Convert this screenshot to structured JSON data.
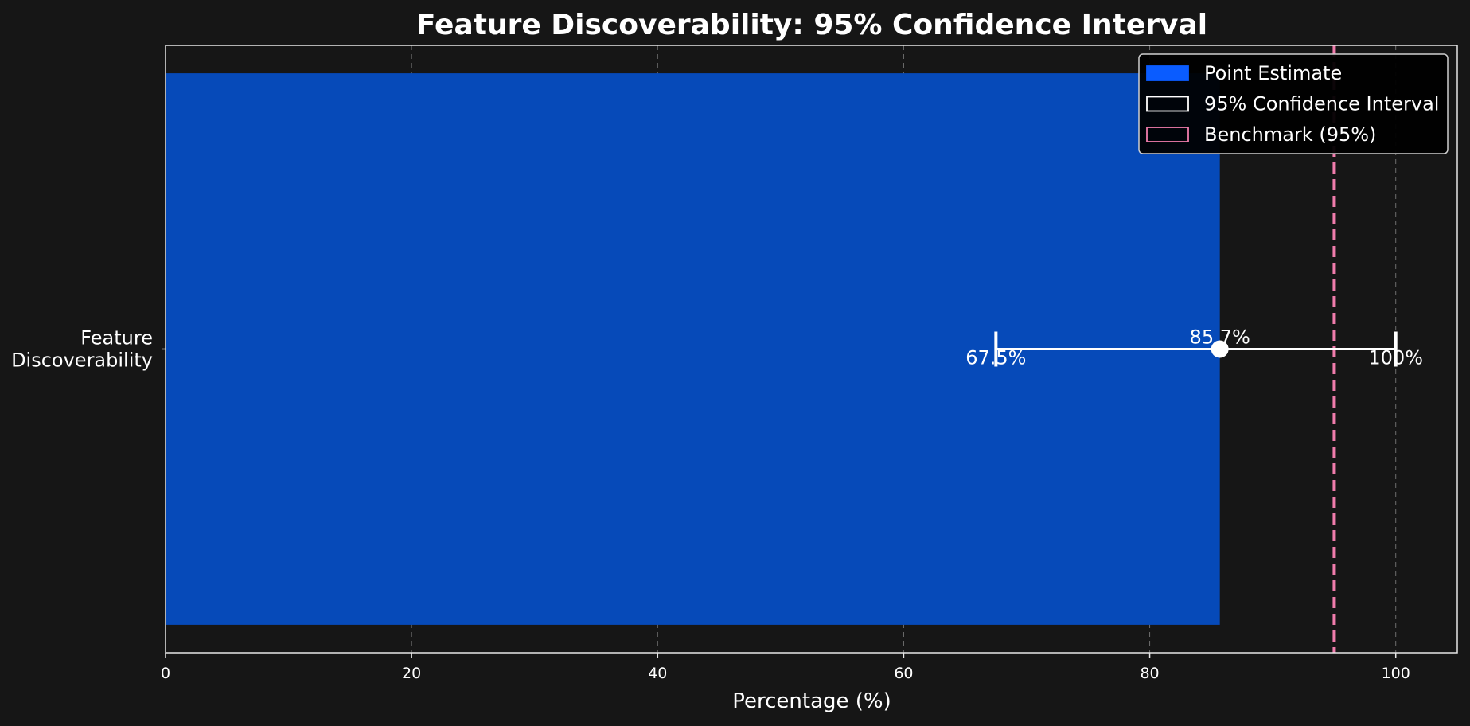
{
  "chart_data": {
    "type": "bar",
    "orientation": "horizontal",
    "title": "Feature Discoverability: 95% Confidence Interval",
    "xlabel": "Percentage (%)",
    "ylabel": "",
    "categories": [
      "Feature Discoverability"
    ],
    "category_lines": [
      "Feature",
      "Discoverability"
    ],
    "xlim": [
      0,
      105
    ],
    "xticks": [
      0,
      20,
      40,
      60,
      80,
      100
    ],
    "grid": "x, dashed",
    "series": [
      {
        "name": "Point Estimate",
        "values": [
          85.7
        ],
        "ci_lower": [
          67.5
        ],
        "ci_upper": [
          100
        ],
        "value_label": "85.7%",
        "lower_label": "67.5%",
        "upper_label": "100%"
      }
    ],
    "benchmark": {
      "name": "Benchmark (95%)",
      "value": 95
    },
    "legend": {
      "placement": "top-right",
      "entries": [
        "Point Estimate",
        "95% Confidence Interval",
        "Benchmark (95%)"
      ]
    },
    "colors": {
      "background": "#161616",
      "bar": "#064ab9",
      "legend_point_swatch": "#0a5cff",
      "ci": "#ffffff",
      "benchmark": "#f07cac",
      "grid": "#6e6e6e",
      "axes": "#e6e6e6"
    }
  }
}
